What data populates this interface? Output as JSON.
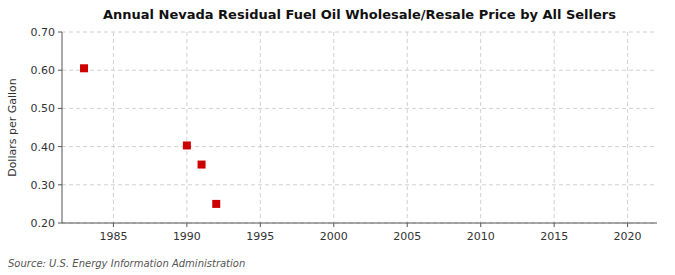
{
  "chart_data": {
    "type": "scatter",
    "title": "Annual Nevada Residual Fuel Oil Wholesale/Resale Price by All Sellers",
    "ylabel": "Dollars per Gallon",
    "annotations": [
      "Source: U.S. Energy Information Administration"
    ],
    "x": [
      1983,
      1990,
      1991,
      1992
    ],
    "values": [
      0.605,
      0.403,
      0.353,
      0.25
    ],
    "color": "#cc0000",
    "marker": "square",
    "xlim": [
      1981.5,
      2022
    ],
    "ylim": [
      0.2,
      0.7
    ],
    "xticks": [
      1985,
      1990,
      1995,
      2000,
      2005,
      2010,
      2015,
      2020
    ],
    "yticks": [
      {
        "value": 0.2,
        "label": "0.20"
      },
      {
        "value": 0.3,
        "label": "0.30"
      },
      {
        "value": 0.4,
        "label": "0.40"
      },
      {
        "value": 0.5,
        "label": "0.50"
      },
      {
        "value": 0.6,
        "label": "0.60"
      },
      {
        "value": 0.7,
        "label": "0.70"
      }
    ],
    "grid": true
  }
}
